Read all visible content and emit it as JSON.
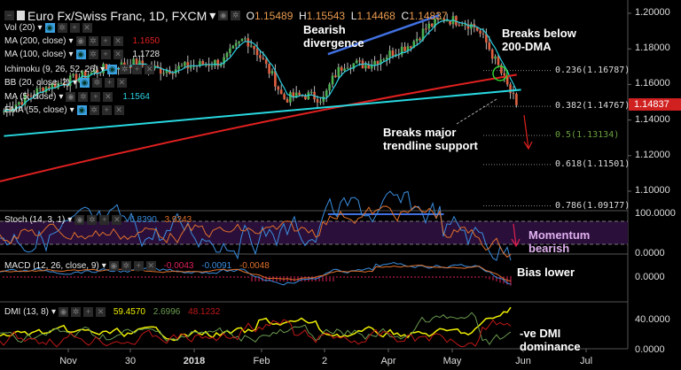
{
  "header": {
    "title": "Euro Fx/Swiss Franc, 1D, FXCM",
    "open_label": "O",
    "open": "1.15489",
    "high_label": "H",
    "high": "1.15543",
    "low_label": "L",
    "low": "1.14468",
    "close_label": "C",
    "close": "1.14837"
  },
  "legend": [
    {
      "label": "Vol (20)",
      "value": "",
      "color": "#e8e8e8",
      "eye_on": true
    },
    {
      "label": "MA (200, close)",
      "value": "1.1650",
      "color": "#e02020",
      "eye_on": false
    },
    {
      "label": "MA (100, close)",
      "value": "1.1728",
      "color": "#e8e8e8",
      "eye_on": true
    },
    {
      "label": "Ichimoku (9, 26, 52, 26)",
      "value": "",
      "color": "#e8e8e8",
      "eye_on": true
    },
    {
      "label": "BB (20, close, 2)",
      "value": "",
      "color": "#e8e8e8",
      "eye_on": true
    },
    {
      "label": "MA (5, close)",
      "value": "1.1564",
      "color": "#28d0e0",
      "eye_on": false
    },
    {
      "label": "EMA (55, close)",
      "value": "",
      "color": "#e8e8e8",
      "eye_on": true
    }
  ],
  "indicators": {
    "stoch": {
      "label": "Stoch (14, 3, 1)",
      "k": "6.8390",
      "d": "3.9243",
      "k_color": "#3a8ee0",
      "d_color": "#e0702a"
    },
    "macd": {
      "label": "MACD (12, 26, close, 9)",
      "hist": "-0.0043",
      "macd": "-0.0091",
      "signal": "-0.0048",
      "hist_color": "#e0205a",
      "macd_color": "#3a8ee0",
      "signal_color": "#e0702a"
    },
    "dmi": {
      "label": "DMI (13, 8)",
      "adx": "59.4570",
      "plus_di": "2.6996",
      "minus_di": "48.1232",
      "adx_color": "#f0f000",
      "plus_color": "#6a9a50",
      "minus_color": "#c01818"
    }
  },
  "annotations": {
    "bearish_divergence": "Bearish divergence",
    "breaks_200dma": "Breaks below 200-DMA",
    "breaks_trendline": "Breaks major trendline support",
    "momentum": "Momentum bearish",
    "bias": "Bias lower",
    "dmi": "-ve DMI dominance"
  },
  "price_axis": {
    "ticks": [
      "1.20000",
      "1.18000",
      "1.16000",
      "1.14000",
      "1.12000",
      "1.10000"
    ],
    "last_price": "1.14837",
    "last_color": "#d02020"
  },
  "stoch_axis": [
    "100.0000",
    "0.0000"
  ],
  "macd_axis": [
    "0.0000"
  ],
  "dmi_axis": [
    "40.0000",
    "0.0000"
  ],
  "time_axis": [
    "Nov",
    "30",
    "2018",
    "Feb",
    "2",
    "Apr",
    "May",
    "Jun",
    "Jul"
  ],
  "fib_levels": [
    {
      "label": "0.236(1.16787)",
      "value": 1.16787,
      "color": "#dddddd"
    },
    {
      "label": "0.382(1.14767)",
      "value": 1.14767,
      "color": "#dddddd"
    },
    {
      "label": "0.5(1.13134)",
      "value": 1.13134,
      "color": "#6aa040"
    },
    {
      "label": "0.618(1.11501)",
      "value": 1.11501,
      "color": "#dddddd"
    },
    {
      "label": "0.786(1.09177)",
      "value": 1.09177,
      "color": "#dddddd"
    }
  ],
  "chart_data": {
    "type": "candlestick",
    "ylim": [
      1.09,
      1.205
    ],
    "close_path": [
      [
        "2017-10-02",
        1.145
      ],
      [
        "2017-10-20",
        1.158
      ],
      [
        "2017-11-01",
        1.162
      ],
      [
        "2017-11-15",
        1.168
      ],
      [
        "2017-12-01",
        1.172
      ],
      [
        "2017-12-15",
        1.168
      ],
      [
        "2018-01-01",
        1.171
      ],
      [
        "2018-01-12",
        1.173
      ],
      [
        "2018-01-22",
        1.186
      ],
      [
        "2018-01-26",
        1.182
      ],
      [
        "2018-02-05",
        1.163
      ],
      [
        "2018-02-09",
        1.152
      ],
      [
        "2018-02-20",
        1.154
      ],
      [
        "2018-02-28",
        1.152
      ],
      [
        "2018-03-05",
        1.165
      ],
      [
        "2018-03-10",
        1.172
      ],
      [
        "2018-03-20",
        1.171
      ],
      [
        "2018-04-01",
        1.178
      ],
      [
        "2018-04-10",
        1.183
      ],
      [
        "2018-04-17",
        1.192
      ],
      [
        "2018-04-25",
        1.197
      ],
      [
        "2018-05-05",
        1.195
      ],
      [
        "2018-05-10",
        1.192
      ],
      [
        "2018-05-15",
        1.183
      ],
      [
        "2018-05-20",
        1.171
      ],
      [
        "2018-05-25",
        1.158
      ],
      [
        "2018-05-29",
        1.148
      ]
    ],
    "ma200": [
      [
        "2017-10-02",
        1.1055
      ],
      [
        "2018-05-29",
        1.1655
      ]
    ],
    "trendline": [
      [
        "2017-10-02",
        1.131
      ],
      [
        "2018-05-31",
        1.157
      ]
    ],
    "divergence_line": [
      [
        "2018-03-02",
        1.177
      ],
      [
        "2018-04-23",
        1.199
      ]
    ],
    "stoch_divergence": [
      [
        "2018-03-02",
        100
      ],
      [
        "2018-04-25",
        100
      ]
    ],
    "up_color": "#4cb050",
    "down_color": "#e06040",
    "ma5_color": "#28d0e0",
    "trend_color": "#28d8e0",
    "divergence_color": "#4070e0"
  }
}
